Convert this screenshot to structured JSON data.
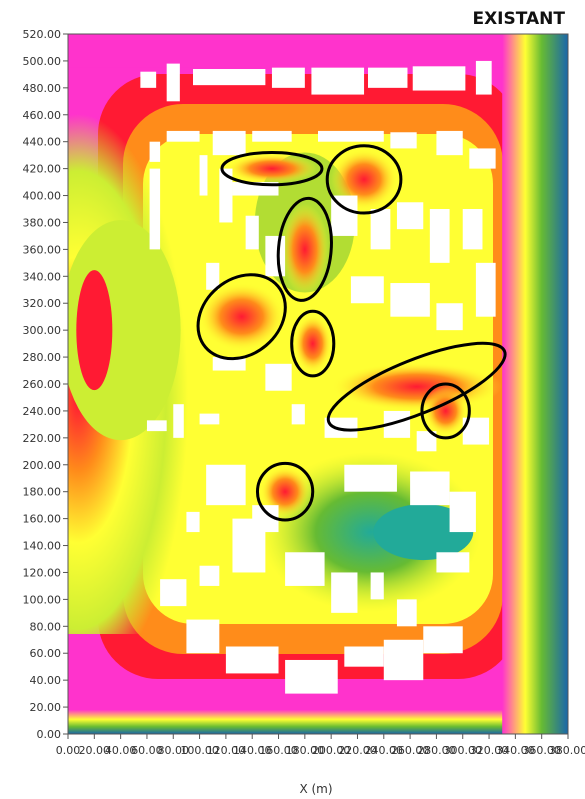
{
  "chart_data": {
    "type": "heatmap",
    "title": "EXISTANT",
    "xlabel": "X (m)",
    "ylabel": "",
    "xlim": [
      0,
      380
    ],
    "ylim": [
      0,
      520
    ],
    "x_ticks": [
      "0.00",
      "20.00",
      "40.00",
      "60.00",
      "80.00",
      "100.00",
      "120.00",
      "140.00",
      "160.00",
      "180.00",
      "200.00",
      "220.00",
      "240.00",
      "260.00",
      "280.00",
      "300.00",
      "320.00",
      "340.00",
      "360.00",
      "380.00"
    ],
    "y_ticks": [
      "0.00",
      "20.00",
      "40.00",
      "60.00",
      "80.00",
      "100.00",
      "120.00",
      "140.00",
      "160.00",
      "180.00",
      "200.00",
      "220.00",
      "240.00",
      "260.00",
      "280.00",
      "300.00",
      "320.00",
      "340.00",
      "360.00",
      "380.00",
      "400.00",
      "420.00",
      "440.00",
      "460.00",
      "480.00",
      "500.00",
      "520.00"
    ],
    "grid": false,
    "colors": {
      "magenta": "#ff33cc",
      "red": "#ff1a33",
      "orange": "#ff8c1a",
      "yellow": "#ffff33",
      "yellow_green": "#ccee33",
      "green": "#66bb33",
      "teal": "#22aa99",
      "blue": "#1a66aa",
      "building": "#ffffff",
      "annotation": "#000000"
    },
    "annotations": [
      {
        "shape": "ellipse",
        "cx": 155,
        "cy": 420,
        "rx": 38,
        "ry": 12
      },
      {
        "shape": "ellipse",
        "cx": 225,
        "cy": 412,
        "rx": 28,
        "ry": 25
      },
      {
        "shape": "ellipse",
        "cx": 180,
        "cy": 360,
        "rx": 20,
        "ry": 38
      },
      {
        "shape": "ellipse",
        "cx": 132,
        "cy": 310,
        "rx": 36,
        "ry": 28
      },
      {
        "shape": "ellipse",
        "cx": 186,
        "cy": 290,
        "rx": 16,
        "ry": 24
      },
      {
        "shape": "ellipse",
        "cx": 265,
        "cy": 258,
        "rx": 72,
        "ry": 20
      },
      {
        "shape": "ellipse",
        "cx": 287,
        "cy": 240,
        "rx": 18,
        "ry": 20
      },
      {
        "shape": "ellipse",
        "cx": 165,
        "cy": 180,
        "rx": 21,
        "ry": 21
      }
    ]
  }
}
